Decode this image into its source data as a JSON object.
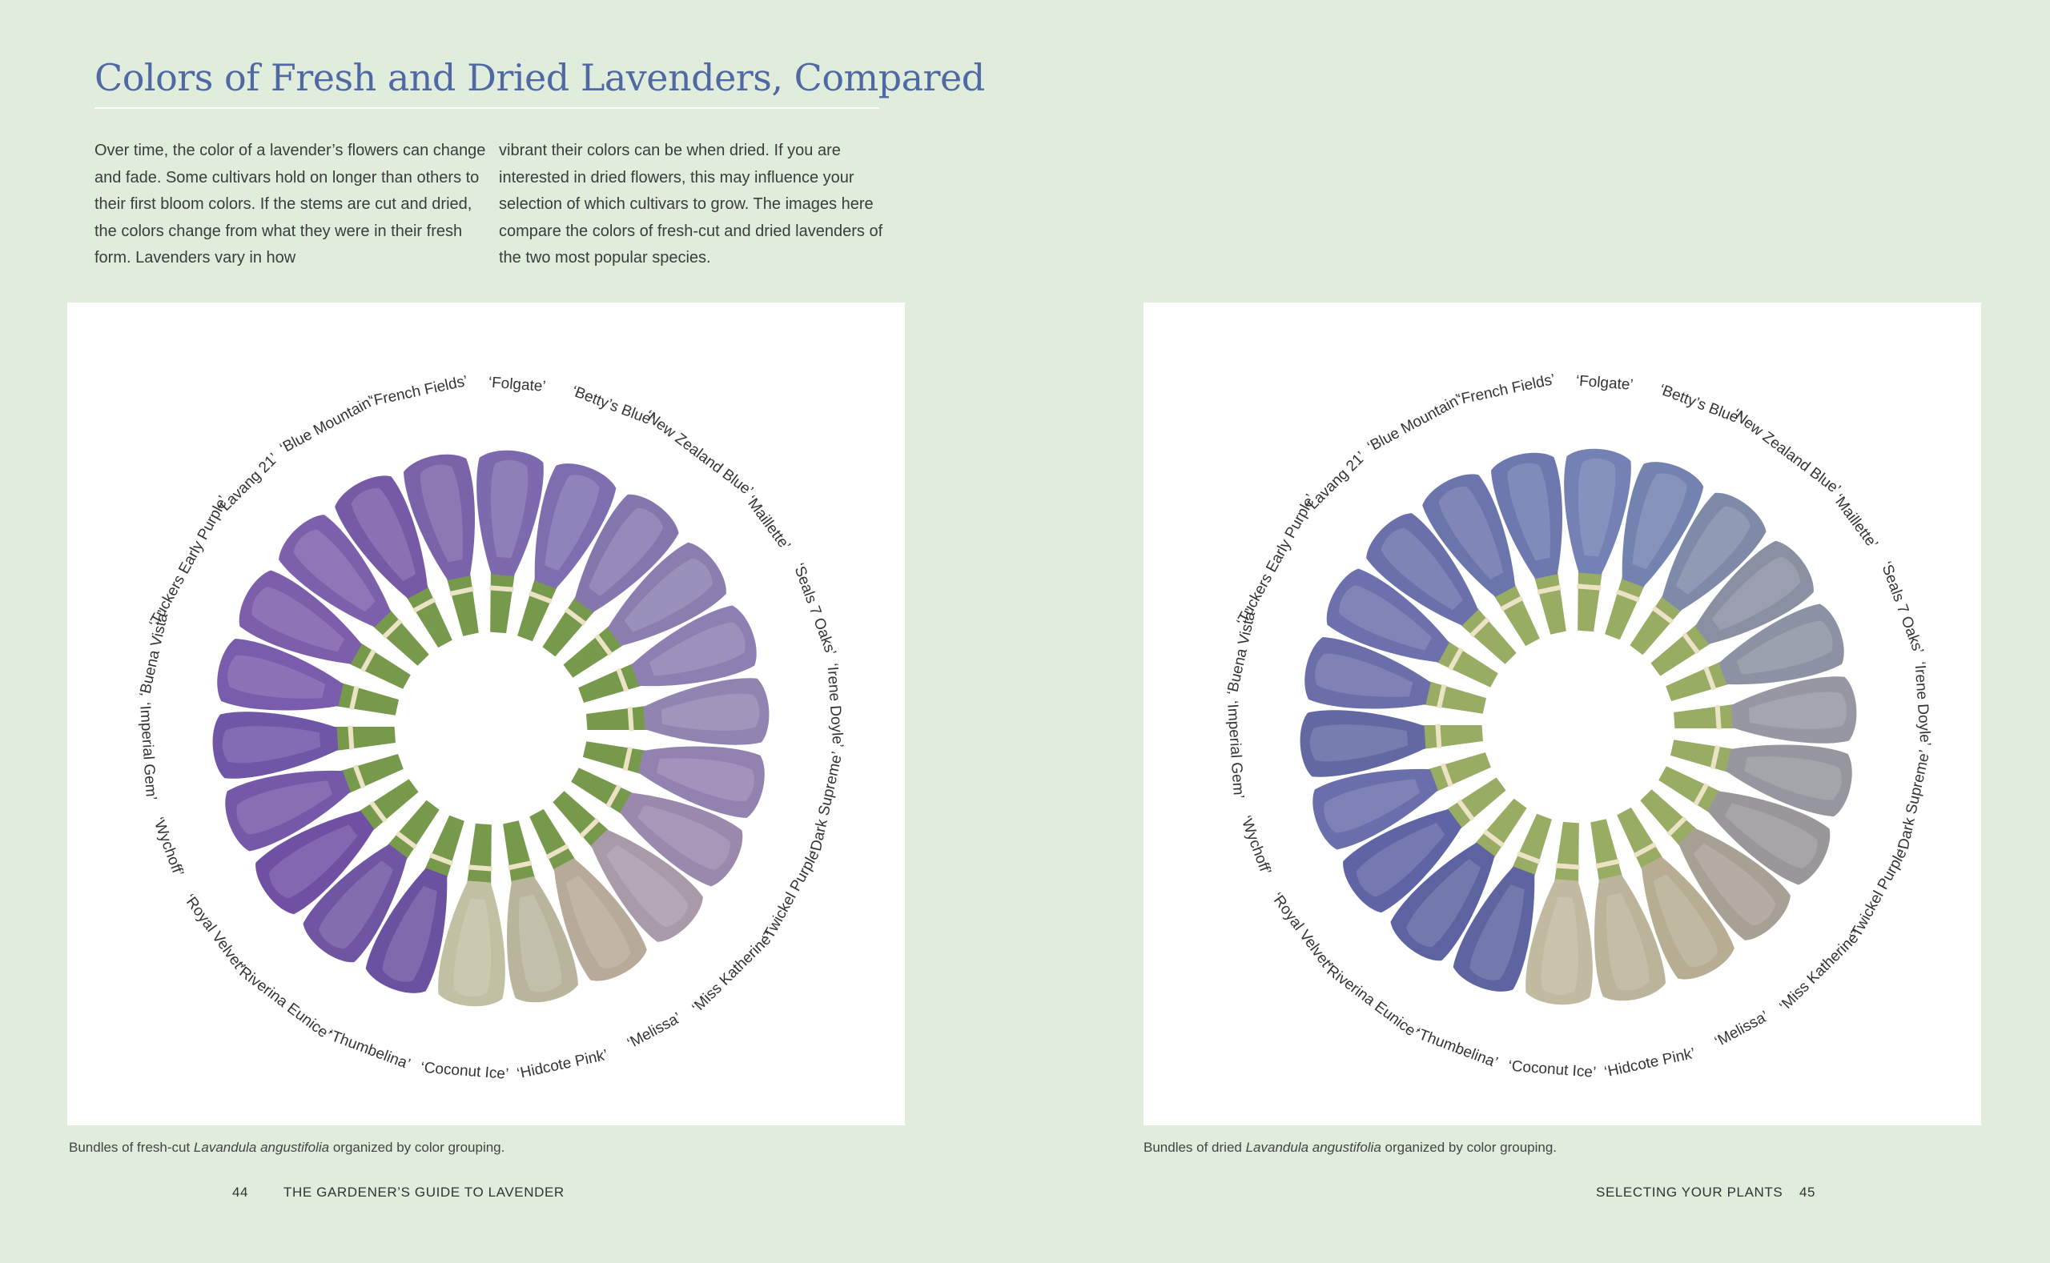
{
  "title": "Colors of Fresh and Dried Lavenders, Compared",
  "intro": {
    "col1": "Over time, the color of a lavender’s flowers can change and fade. Some cultivars hold on longer than others to their first bloom colors. If the stems are cut and dried, the colors change from what they were in their fresh form. Lavenders vary in how",
    "col2": "vibrant their colors can be when dried. If you are interested in dried flowers, this may influence your selection of which cultivars to grow. The images here compare the colors of fresh-cut and dried lavenders of the two most popular species."
  },
  "fresh_photo": {
    "caption": {
      "before": "Bundles of fresh-cut ",
      "species": "Lavandula angustifolia",
      "after": " organized by color grouping."
    },
    "labels": [
      "‘French Fields’",
      "‘Folgate’",
      "‘Betty’s Blue’",
      "‘New Zealand Blue’",
      "‘Maillette’",
      "‘Seals 7 Oaks’",
      "‘Irene Doyle’",
      "‘Dark Supreme’",
      "‘Twickel Purple’",
      "‘Miss Katherine’",
      "‘Melissa’",
      "‘Hidcote Pink’",
      "‘Coconut Ice’",
      "‘Thumbelina’",
      "‘Riverina Eunice’",
      "‘Royal Velvet’",
      "‘Wychoff’",
      "‘Imperial Gem’",
      "‘Buena Vista’",
      "‘Tuckers Early Purple’",
      "‘Lavang 21’",
      "‘Blue Mountain’"
    ],
    "bundle_colors": [
      "#7a63a8",
      "#7d6aae",
      "#7e6eb0",
      "#8676ae",
      "#8b7eae",
      "#8d7fb2",
      "#9284b0",
      "#9282b0",
      "#9a88ad",
      "#a89aa8",
      "#b7aa98",
      "#b9b59c",
      "#c2c0a2",
      "#6a52a0",
      "#7055a2",
      "#6f50a2",
      "#7558a8",
      "#6f56a6",
      "#7a5cac",
      "#7c5eaa",
      "#7d60ac",
      "#765aa6"
    ],
    "stem_color": "#6f9442"
  },
  "dried_photo": {
    "caption": {
      "before": "Bundles of dried ",
      "species": "Lavandula angustifolia",
      "after": " organized by color grouping."
    },
    "labels": [
      "‘French Fields’",
      "‘Folgate’",
      "‘Betty’s Blue’",
      "‘New Zealand Blue’",
      "‘Maillette’",
      "‘Seals 7 Oaks’",
      "‘Irene Doyle’",
      "‘Dark Supreme’",
      "‘Twickel Purple’",
      "‘Miss Katherine’",
      "‘Melissa’",
      "‘Hidcote Pink’",
      "‘Coconut Ice’",
      "‘Thumbelina’",
      "‘Riverina Eunice’",
      "‘Royal Velvet’",
      "‘Wychoff’",
      "‘Imperial Gem’",
      "‘Buena Vista’",
      "‘Tuckers Early Purple’",
      "‘Lavang 21’",
      "‘Blue Mountain’"
    ],
    "bundle_colors": [
      "#6d78ae",
      "#7381b4",
      "#7482b0",
      "#7f8aa8",
      "#8a8fa2",
      "#8c92a4",
      "#9697a2",
      "#96979e",
      "#9a979a",
      "#a7a094",
      "#b7ad92",
      "#bbb49a",
      "#c1b9a0",
      "#5e64a0",
      "#5d62a0",
      "#5f64a4",
      "#6a6eaa",
      "#6268a2",
      "#6c6eaa",
      "#6d70ac",
      "#6b70aa",
      "#6c74ac"
    ],
    "stem_color": "#94a85c"
  },
  "folio_left": {
    "page_number": "44",
    "running_head": "THE GARDENER’S GUIDE TO LAVENDER"
  },
  "folio_right": {
    "running_head": "SELECTING YOUR PLANTS",
    "page_number": "45"
  }
}
